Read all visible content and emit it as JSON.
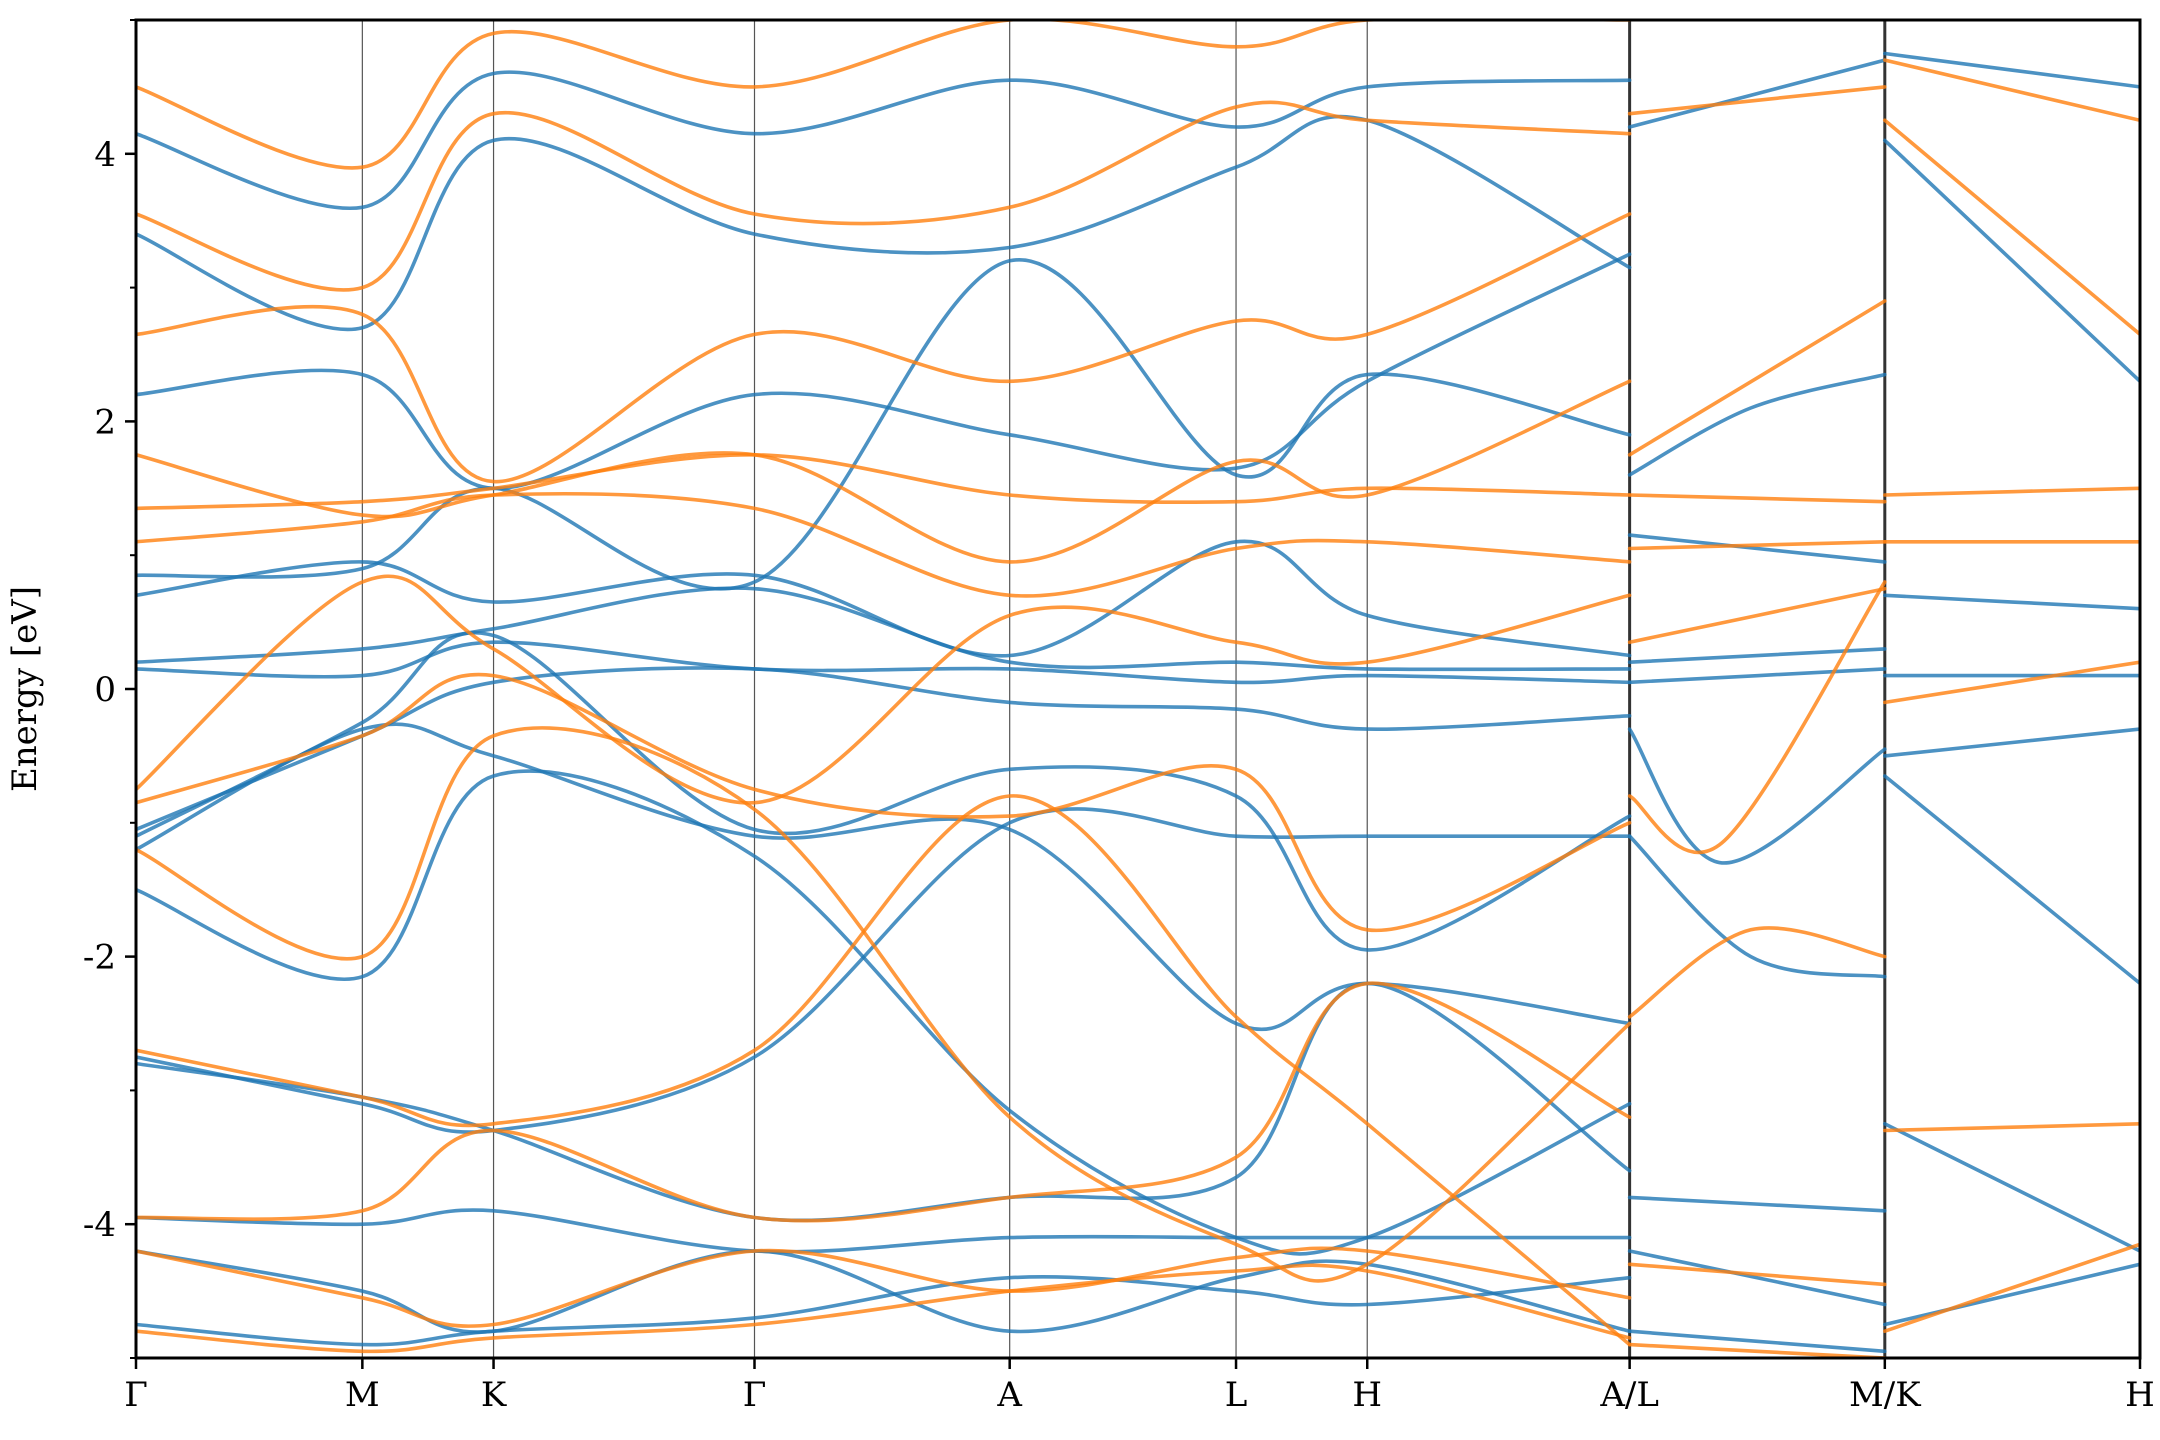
{
  "chart_data": {
    "type": "line",
    "title": "",
    "ylabel": "Energy [eV]",
    "xlabel": "",
    "ylim": [
      -5,
      5
    ],
    "xlim": [
      0,
      13.9
    ],
    "y_ticks": [
      {
        "value": 4,
        "label": "4"
      },
      {
        "value": 2,
        "label": "2"
      },
      {
        "value": 0,
        "label": "0"
      },
      {
        "value": -2,
        "label": "-2"
      },
      {
        "value": -4,
        "label": "-4"
      }
    ],
    "y_minor_ticks": [
      5,
      3,
      1,
      -1,
      -3,
      -5
    ],
    "k_points": [
      {
        "label": "Γ",
        "x": 0.0
      },
      {
        "label": "M",
        "x": 1.57
      },
      {
        "label": "K",
        "x": 2.48
      },
      {
        "label": "Γ",
        "x": 4.29
      },
      {
        "label": "A",
        "x": 6.06
      },
      {
        "label": "L",
        "x": 7.63
      },
      {
        "label": "H",
        "x": 8.54
      },
      {
        "label": "A/L",
        "x": 10.36
      },
      {
        "label": "M/K",
        "x": 12.13
      },
      {
        "label": "H",
        "x": 13.9
      }
    ],
    "path_breaks": [
      10.36,
      12.13
    ],
    "grid": "vertical lines at high-symmetry points",
    "colors": {
      "series_a": "#1f77b4",
      "series_b": "#ff7f0e",
      "vline": "#555555"
    },
    "series": [
      {
        "color_key": "series_a",
        "bands": [
          {
            "x": [
              0,
              1.57,
              2.48,
              4.29,
              6.06,
              7.63,
              8.54,
              10.36
            ],
            "y": [
              -4.75,
              -4.9,
              -4.8,
              -4.7,
              -4.4,
              -4.5,
              -4.6,
              -4.4
            ]
          },
          {
            "x": [
              0,
              1.57,
              2.48,
              4.29,
              6.06,
              7.63,
              8.54,
              10.36
            ],
            "y": [
              -4.2,
              -4.5,
              -4.8,
              -4.2,
              -4.8,
              -4.4,
              -4.3,
              -4.8
            ]
          },
          {
            "x": [
              0,
              1.57,
              2.48,
              4.29,
              6.06,
              7.63,
              8.54,
              10.36
            ],
            "y": [
              -3.95,
              -4.0,
              -3.9,
              -4.2,
              -4.1,
              -4.1,
              -4.1,
              -4.1
            ]
          },
          {
            "x": [
              0,
              1.57,
              2.48,
              4.29,
              6.06,
              7.63,
              8.54,
              10.36
            ],
            "y": [
              -2.75,
              -3.1,
              -3.3,
              -2.75,
              -1.0,
              -1.1,
              -1.1,
              -1.1
            ]
          },
          {
            "x": [
              0,
              1.57,
              2.48,
              4.29,
              6.06,
              7.63,
              8.54,
              10.36
            ],
            "y": [
              -2.8,
              -3.05,
              -3.3,
              -3.95,
              -3.8,
              -3.65,
              -2.2,
              -3.6
            ]
          },
          {
            "x": [
              0,
              1.57,
              2.48,
              4.29,
              6.06,
              7.63,
              8.54,
              10.36
            ],
            "y": [
              -1.5,
              -2.15,
              -0.65,
              -1.25,
              -3.15,
              -4.1,
              -4.1,
              -3.1
            ]
          },
          {
            "x": [
              0,
              1.57,
              2.48,
              4.29,
              6.06,
              7.63,
              8.54,
              10.36
            ],
            "y": [
              -1.2,
              -0.3,
              -0.5,
              -1.1,
              -1.05,
              -2.5,
              -2.2,
              -2.5
            ]
          },
          {
            "x": [
              0,
              1.57,
              2.48,
              4.29,
              6.06,
              7.63,
              8.54,
              10.36
            ],
            "y": [
              -1.1,
              -0.25,
              0.4,
              -1.05,
              -0.6,
              -0.8,
              -1.95,
              -0.95
            ]
          },
          {
            "x": [
              0,
              1.57,
              2.48,
              4.29,
              6.06,
              7.63,
              8.54,
              10.36
            ],
            "y": [
              -1.05,
              -0.35,
              0.05,
              0.15,
              -0.1,
              -0.15,
              -0.3,
              -0.2
            ]
          },
          {
            "x": [
              0,
              1.57,
              2.48,
              4.29,
              6.06,
              7.63,
              8.54,
              10.36
            ],
            "y": [
              0.15,
              0.1,
              0.35,
              0.15,
              0.15,
              0.05,
              0.1,
              0.05
            ]
          },
          {
            "x": [
              0,
              1.57,
              2.48,
              4.29,
              6.06,
              7.63,
              8.54,
              10.36
            ],
            "y": [
              0.2,
              0.3,
              0.45,
              0.75,
              0.2,
              0.2,
              0.15,
              0.15
            ]
          },
          {
            "x": [
              0,
              1.57,
              2.48,
              4.29,
              6.06,
              7.63,
              8.54,
              10.36
            ],
            "y": [
              0.7,
              0.95,
              0.65,
              0.85,
              0.25,
              1.1,
              0.55,
              0.25
            ]
          },
          {
            "x": [
              0,
              1.57,
              2.48,
              4.29,
              6.06,
              7.63,
              8.54,
              10.36
            ],
            "y": [
              0.85,
              0.9,
              1.5,
              0.8,
              3.2,
              1.6,
              2.35,
              1.9
            ]
          },
          {
            "x": [
              0,
              1.57,
              2.48,
              4.29,
              6.06,
              7.63,
              8.54,
              10.36
            ],
            "y": [
              2.2,
              2.35,
              1.5,
              2.2,
              1.9,
              1.65,
              2.3,
              3.25
            ]
          },
          {
            "x": [
              0,
              1.57,
              2.48,
              4.29,
              6.06,
              7.63,
              8.54,
              10.36
            ],
            "y": [
              3.4,
              2.7,
              4.1,
              3.4,
              3.3,
              3.9,
              4.25,
              3.15
            ]
          },
          {
            "x": [
              0,
              1.57,
              2.48,
              4.29,
              6.06,
              7.63,
              8.54,
              10.36
            ],
            "y": [
              4.15,
              3.6,
              4.6,
              4.15,
              4.55,
              4.2,
              4.5,
              4.55
            ]
          },
          {
            "x": [
              10.36,
              12.13
            ],
            "y": [
              -4.8,
              -4.95
            ]
          },
          {
            "x": [
              10.36,
              12.13
            ],
            "y": [
              -4.2,
              -4.6
            ]
          },
          {
            "x": [
              10.36,
              12.13
            ],
            "y": [
              -3.8,
              -3.9
            ]
          },
          {
            "x": [
              10.36,
              11.2,
              12.13
            ],
            "y": [
              -1.1,
              -2.0,
              -2.15
            ]
          },
          {
            "x": [
              10.36,
              11.0,
              12.13
            ],
            "y": [
              -0.3,
              -1.3,
              -0.45
            ]
          },
          {
            "x": [
              10.36,
              12.13
            ],
            "y": [
              0.05,
              0.15
            ]
          },
          {
            "x": [
              10.36,
              12.13
            ],
            "y": [
              0.2,
              0.3
            ]
          },
          {
            "x": [
              10.36,
              12.13
            ],
            "y": [
              1.15,
              0.95
            ]
          },
          {
            "x": [
              10.36,
              11.2,
              12.13
            ],
            "y": [
              1.6,
              2.1,
              2.35
            ]
          },
          {
            "x": [
              10.36,
              12.13
            ],
            "y": [
              4.2,
              4.7
            ]
          },
          {
            "x": [
              12.13,
              13.9
            ],
            "y": [
              -4.75,
              -4.3
            ]
          },
          {
            "x": [
              12.13,
              13.9
            ],
            "y": [
              -3.25,
              -4.2
            ]
          },
          {
            "x": [
              12.13,
              13.9
            ],
            "y": [
              -0.65,
              -2.2
            ]
          },
          {
            "x": [
              12.13,
              13.9
            ],
            "y": [
              -0.5,
              -0.3
            ]
          },
          {
            "x": [
              12.13,
              13.9
            ],
            "y": [
              0.1,
              0.1
            ]
          },
          {
            "x": [
              12.13,
              13.9
            ],
            "y": [
              0.7,
              0.6
            ]
          },
          {
            "x": [
              12.13,
              13.9
            ],
            "y": [
              4.1,
              2.3
            ]
          },
          {
            "x": [
              12.13,
              13.9
            ],
            "y": [
              4.75,
              4.5
            ]
          }
        ]
      },
      {
        "color_key": "series_b",
        "bands": [
          {
            "x": [
              0,
              1.57,
              2.48,
              4.29,
              6.06,
              7.63,
              8.54,
              10.36
            ],
            "y": [
              -4.8,
              -4.95,
              -4.85,
              -4.75,
              -4.5,
              -4.35,
              -4.35,
              -4.85
            ]
          },
          {
            "x": [
              0,
              1.57,
              2.48,
              4.29,
              6.06,
              7.63,
              8.54,
              10.36
            ],
            "y": [
              -4.2,
              -4.55,
              -4.75,
              -4.2,
              -4.5,
              -4.25,
              -4.2,
              -4.55
            ]
          },
          {
            "x": [
              0,
              1.57,
              2.48,
              4.29,
              6.06,
              7.63,
              8.54,
              10.36
            ],
            "y": [
              -3.95,
              -3.9,
              -3.3,
              -3.95,
              -3.8,
              -3.5,
              -2.2,
              -3.2
            ]
          },
          {
            "x": [
              0,
              1.57,
              2.48,
              4.29,
              6.06,
              7.63,
              8.54,
              10.36
            ],
            "y": [
              -2.7,
              -3.05,
              -3.25,
              -2.7,
              -0.8,
              -2.45,
              -3.25,
              -4.9
            ]
          },
          {
            "x": [
              0,
              1.57,
              2.48,
              4.29,
              6.06,
              7.63,
              8.54,
              10.36
            ],
            "y": [
              -1.2,
              -2.0,
              -0.35,
              -0.9,
              -3.2,
              -4.15,
              -4.3,
              -2.5
            ]
          },
          {
            "x": [
              0,
              1.57,
              2.48,
              4.29,
              6.06,
              7.63,
              8.54,
              10.36
            ],
            "y": [
              -0.85,
              -0.35,
              0.1,
              -0.75,
              -0.95,
              -0.6,
              -1.8,
              -1.0
            ]
          },
          {
            "x": [
              0,
              1.57,
              2.48,
              4.29,
              6.06,
              7.63,
              8.54,
              10.36
            ],
            "y": [
              -0.75,
              0.8,
              0.3,
              -0.85,
              0.55,
              0.35,
              0.2,
              0.7
            ]
          },
          {
            "x": [
              0,
              1.57,
              2.48,
              4.29,
              6.06,
              7.63,
              8.54,
              10.36
            ],
            "y": [
              1.1,
              1.25,
              1.45,
              1.35,
              0.7,
              1.05,
              1.1,
              0.95
            ]
          },
          {
            "x": [
              0,
              1.57,
              2.48,
              4.29,
              6.06,
              7.63,
              8.54,
              10.36
            ],
            "y": [
              1.35,
              1.4,
              1.5,
              1.75,
              1.45,
              1.4,
              1.5,
              1.45
            ]
          },
          {
            "x": [
              0,
              1.57,
              2.48,
              4.29,
              6.06,
              7.63,
              8.54,
              10.36
            ],
            "y": [
              1.75,
              1.3,
              1.45,
              1.75,
              0.95,
              1.7,
              1.45,
              2.3
            ]
          },
          {
            "x": [
              0,
              1.57,
              2.48,
              4.29,
              6.06,
              7.63,
              8.54,
              10.36
            ],
            "y": [
              2.65,
              2.8,
              1.55,
              2.65,
              2.3,
              2.75,
              2.65,
              3.55
            ]
          },
          {
            "x": [
              0,
              1.57,
              2.48,
              4.29,
              6.06,
              7.63,
              8.54,
              10.36
            ],
            "y": [
              3.55,
              3.0,
              4.3,
              3.55,
              3.6,
              4.35,
              4.25,
              4.15
            ]
          },
          {
            "x": [
              0,
              1.57,
              2.48,
              4.29,
              6.06,
              7.63,
              8.54,
              10.36
            ],
            "y": [
              4.5,
              3.9,
              4.9,
              4.5,
              5.0,
              4.8,
              5.0,
              5.0
            ]
          },
          {
            "x": [
              10.36,
              12.13
            ],
            "y": [
              -4.9,
              -5.0
            ]
          },
          {
            "x": [
              10.36,
              12.13
            ],
            "y": [
              -4.3,
              -4.45
            ]
          },
          {
            "x": [
              10.36,
              11.2,
              12.13
            ],
            "y": [
              -2.45,
              -1.8,
              -2.0
            ]
          },
          {
            "x": [
              10.36,
              11.0,
              12.13
            ],
            "y": [
              -0.8,
              -1.15,
              0.8
            ]
          },
          {
            "x": [
              10.36,
              12.13
            ],
            "y": [
              0.35,
              0.75
            ]
          },
          {
            "x": [
              10.36,
              12.13
            ],
            "y": [
              1.05,
              1.1
            ]
          },
          {
            "x": [
              10.36,
              12.13
            ],
            "y": [
              1.45,
              1.4
            ]
          },
          {
            "x": [
              10.36,
              12.13
            ],
            "y": [
              1.75,
              2.9
            ]
          },
          {
            "x": [
              10.36,
              12.13
            ],
            "y": [
              4.3,
              4.5
            ]
          },
          {
            "x": [
              12.13,
              13.9
            ],
            "y": [
              -4.8,
              -4.15
            ]
          },
          {
            "x": [
              12.13,
              13.9
            ],
            "y": [
              -3.3,
              -3.25
            ]
          },
          {
            "x": [
              12.13,
              13.9
            ],
            "y": [
              -0.1,
              0.2
            ]
          },
          {
            "x": [
              12.13,
              13.9
            ],
            "y": [
              1.1,
              1.1
            ]
          },
          {
            "x": [
              12.13,
              13.9
            ],
            "y": [
              1.45,
              1.5
            ]
          },
          {
            "x": [
              12.13,
              13.9
            ],
            "y": [
              4.25,
              2.65
            ]
          },
          {
            "x": [
              12.13,
              13.9
            ],
            "y": [
              4.7,
              4.25
            ]
          }
        ]
      }
    ]
  }
}
